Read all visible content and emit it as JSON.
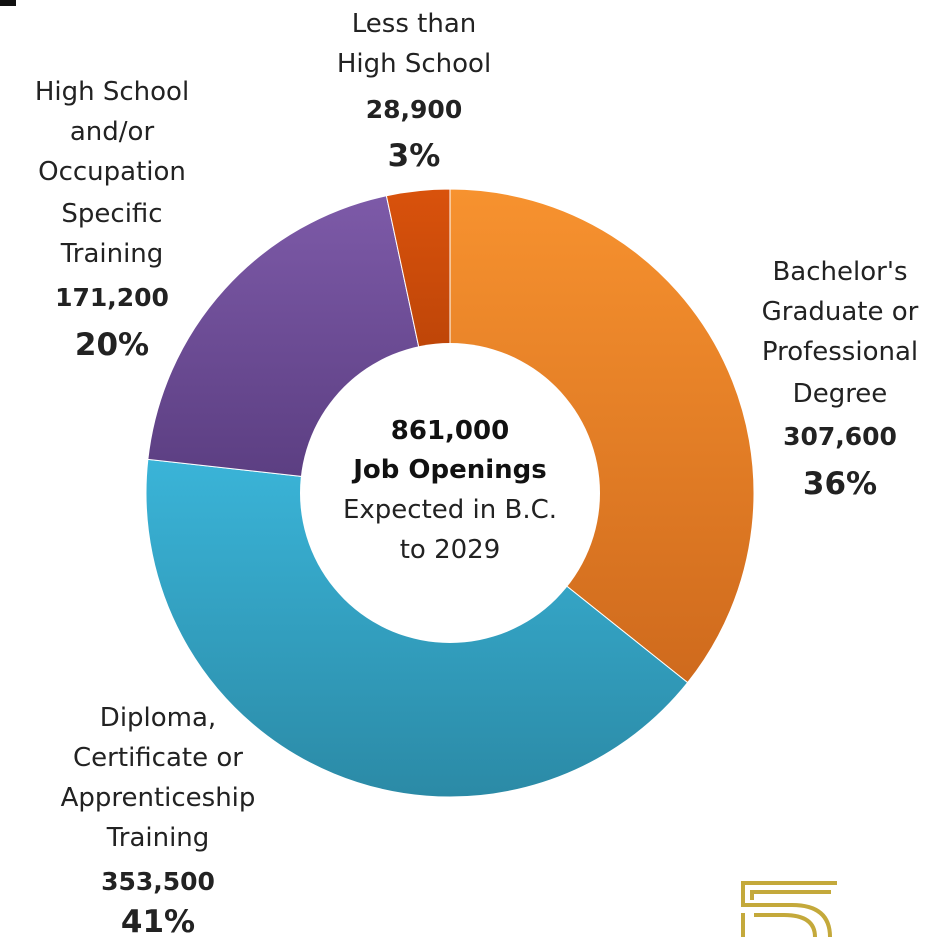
{
  "chart_data": {
    "type": "pie",
    "style": "donut",
    "title": "",
    "center": {
      "total": "861,000",
      "heading": "Job Openings",
      "line1": "Expected in B.C.",
      "line2": "to 2029"
    },
    "slices": [
      {
        "key": "bachelors",
        "label_lines": [
          "Bachelor's",
          "Graduate or",
          "Professional",
          "Degree"
        ],
        "count": 307600,
        "count_label": "307,600",
        "percent": 36,
        "percent_label": "36%",
        "color_light": "#f7922f",
        "color_dark": "#cf6a1d"
      },
      {
        "key": "diploma",
        "label_lines": [
          "Diploma,",
          "Certificate or",
          "Apprenticeship",
          "Training"
        ],
        "count": 353500,
        "count_label": "353,500",
        "percent": 41,
        "percent_label": "41%",
        "color_light": "#3ab4d8",
        "color_dark": "#2b8aa6"
      },
      {
        "key": "high_school",
        "label_lines": [
          "High School",
          "and/or",
          "Occupation",
          "Specific",
          "Training"
        ],
        "count": 171200,
        "count_label": "171,200",
        "percent": 20,
        "percent_label": "20%",
        "color_light": "#7d5aa8",
        "color_dark": "#5a3d80"
      },
      {
        "key": "less_than_hs",
        "label_lines": [
          "Less than",
          "High School"
        ],
        "count": 28900,
        "count_label": "28,900",
        "percent": 3,
        "percent_label": "3%",
        "color_light": "#d9520c",
        "color_dark": "#a63a05"
      }
    ]
  },
  "logo": {
    "icon": "stylized-s-logo-icon",
    "color": "#c4a93b"
  }
}
